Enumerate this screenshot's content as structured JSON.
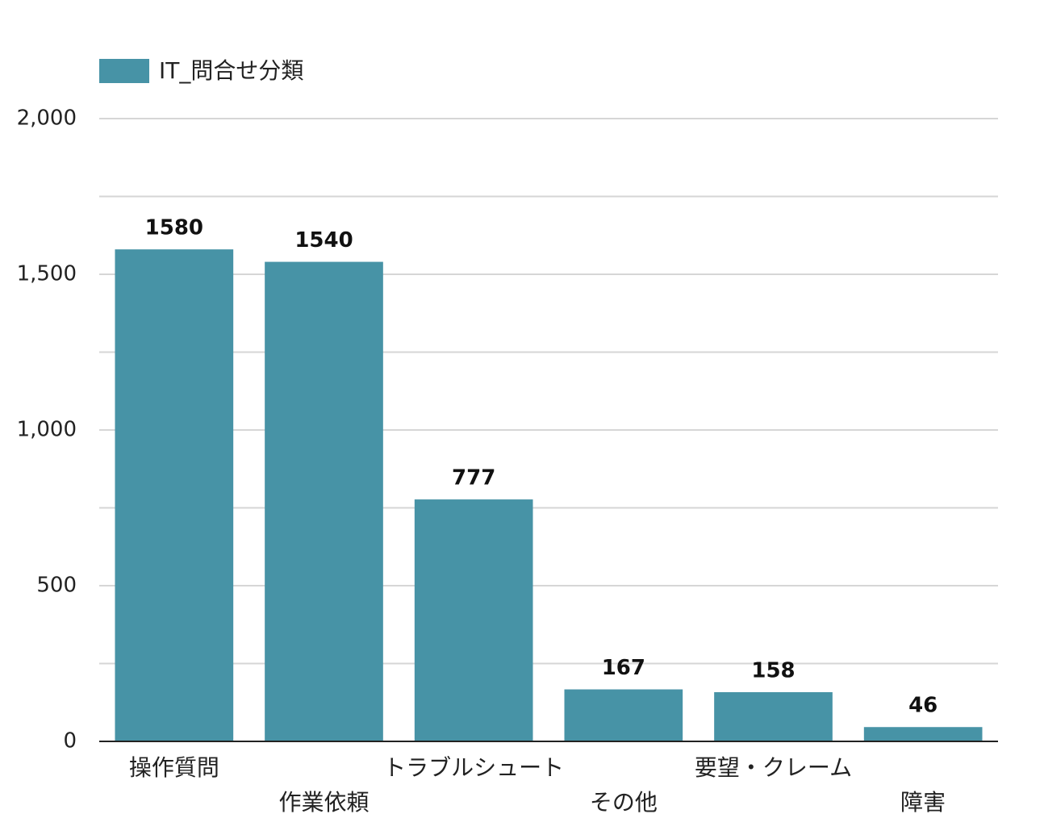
{
  "chart_data": {
    "type": "bar",
    "categories": [
      "操作質問",
      "作業依頼",
      "トラブルシュート",
      "その他",
      "要望・クレーム",
      "障害"
    ],
    "series": [
      {
        "name": "IT_問合せ分類",
        "color": "#4793a6",
        "values": [
          1580,
          1540,
          777,
          167,
          158,
          46
        ]
      }
    ],
    "ylim": [
      0,
      2000
    ],
    "yticks": [
      0,
      500,
      {
        "value": 1000,
        "label": "1,000"
      },
      {
        "value": 1500,
        "label": "1,500"
      },
      {
        "value": 2000,
        "label": "2,000"
      }
    ],
    "minor_yticks": [
      250,
      750,
      1250,
      1750
    ],
    "grid": true,
    "legend": "top-left",
    "data_labels": true
  }
}
